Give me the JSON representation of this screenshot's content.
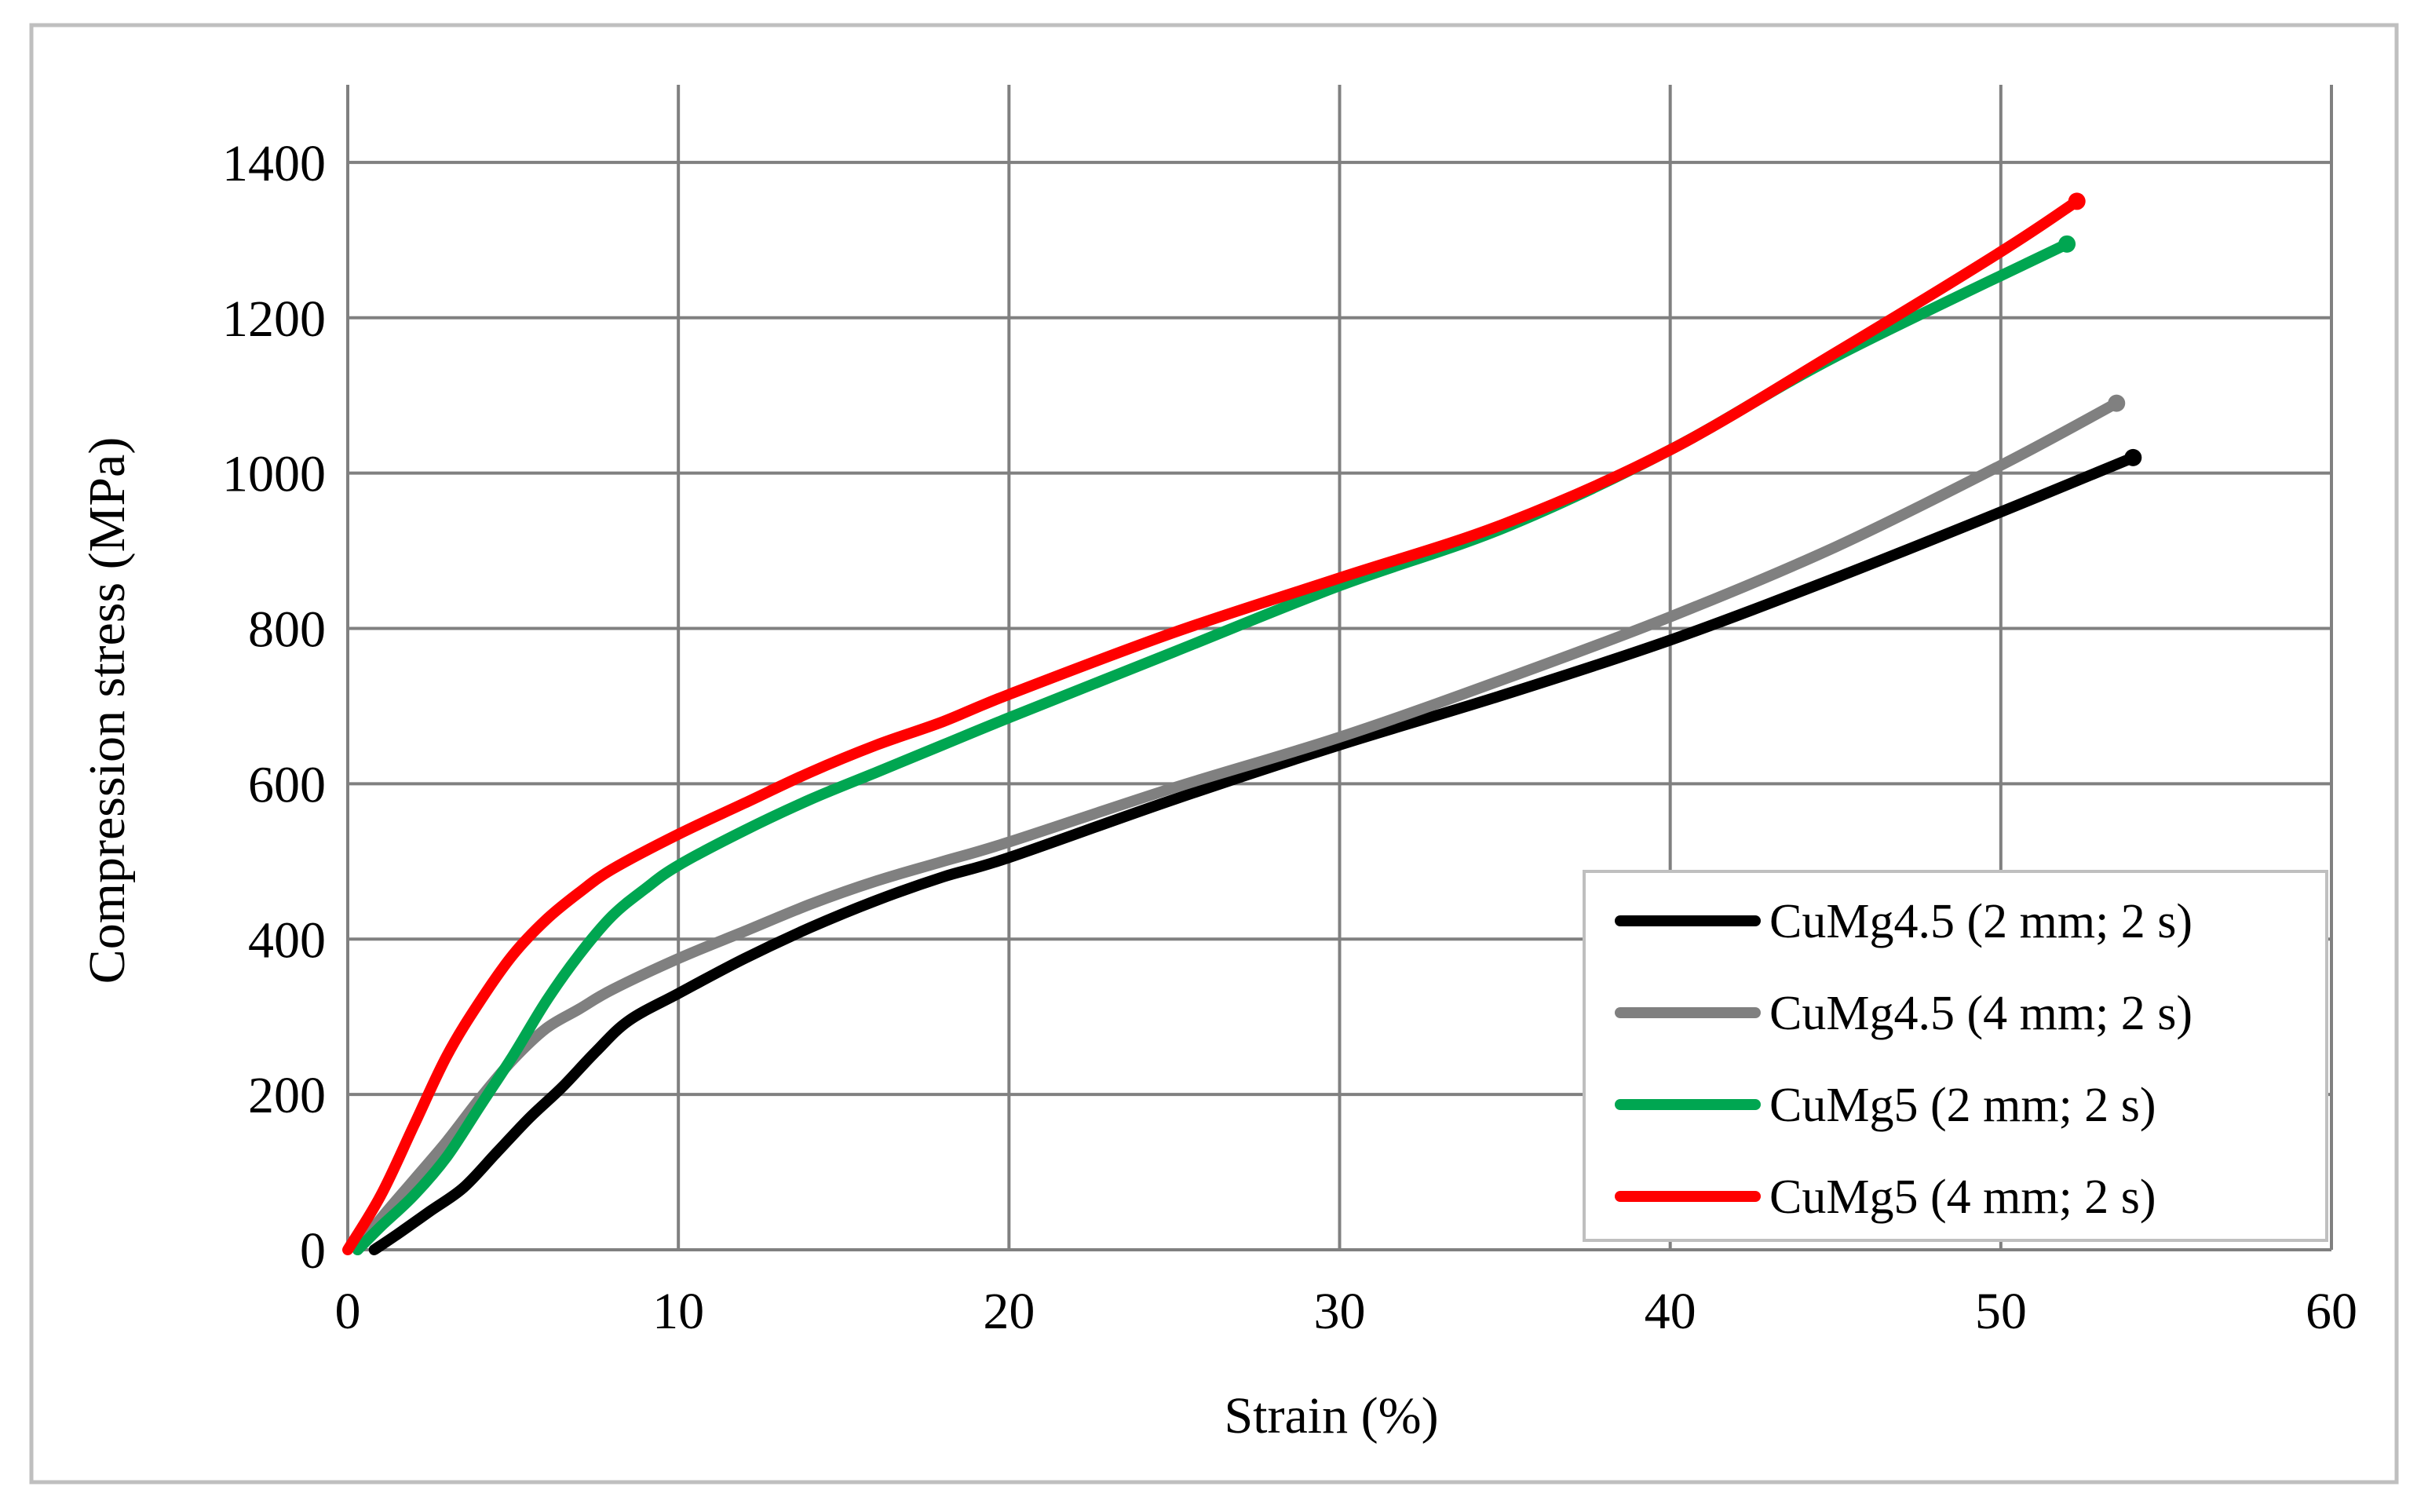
{
  "chart_data": {
    "type": "line",
    "title": "",
    "xlabel": "Strain (%)",
    "ylabel": "Compression stress (MPa)",
    "xlim": [
      0,
      60
    ],
    "ylim": [
      0,
      1500
    ],
    "xticks": [
      0,
      10,
      20,
      30,
      40,
      50,
      60
    ],
    "yticks": [
      0,
      200,
      400,
      600,
      800,
      1000,
      1200,
      1400
    ],
    "xtick_labels": [
      "0",
      "10",
      "20",
      "30",
      "40",
      "50",
      "60"
    ],
    "ytick_labels": [
      "0",
      "200",
      "400",
      "600",
      "800",
      "1000",
      "1200",
      "1400"
    ],
    "grid": true,
    "legend_position": "bottom-right",
    "series": [
      {
        "name": "CuMg4.5 (2 mm; 2 s)",
        "color": "#000000",
        "x": [
          0.8,
          1.5,
          2.5,
          3.5,
          4.5,
          5.5,
          6.5,
          7.5,
          8.5,
          10,
          12,
          14,
          16,
          18,
          20,
          25,
          30,
          35,
          40,
          45,
          50,
          54
        ],
        "y": [
          0,
          20,
          50,
          80,
          125,
          170,
          210,
          255,
          295,
          330,
          375,
          415,
          450,
          480,
          505,
          580,
          650,
          715,
          785,
          865,
          950,
          1020
        ]
      },
      {
        "name": "CuMg4.5 (4 mm; 2 s)",
        "color": "#808080",
        "x": [
          0.3,
          1,
          2,
          3,
          4,
          5,
          6,
          7,
          8,
          10,
          12,
          14,
          16,
          18,
          20,
          25,
          30,
          35,
          40,
          45,
          50,
          53.5
        ],
        "y": [
          0,
          40,
          90,
          140,
          195,
          245,
          285,
          310,
          335,
          375,
          410,
          445,
          475,
          500,
          525,
          595,
          660,
          735,
          815,
          905,
          1010,
          1090
        ]
      },
      {
        "name": "CuMg5 (2 mm; 2 s)",
        "color": "#00A651",
        "x": [
          0.3,
          1,
          2,
          3,
          4,
          5,
          6,
          7,
          8,
          9,
          10,
          12,
          14,
          16,
          18,
          20,
          25,
          30,
          35,
          40,
          45,
          52
        ],
        "y": [
          0,
          30,
          70,
          120,
          185,
          250,
          320,
          380,
          430,
          465,
          495,
          540,
          580,
          615,
          650,
          685,
          770,
          855,
          930,
          1030,
          1150,
          1295
        ]
      },
      {
        "name": "CuMg5 (4 mm; 2 s)",
        "color": "#FF0000",
        "x": [
          0,
          1,
          2,
          3,
          4,
          5,
          6,
          7,
          8,
          10,
          12,
          14,
          16,
          18,
          20,
          25,
          30,
          35,
          40,
          45,
          50,
          52.3
        ],
        "y": [
          0,
          70,
          160,
          250,
          320,
          380,
          425,
          460,
          490,
          535,
          575,
          615,
          650,
          680,
          715,
          795,
          865,
          935,
          1030,
          1155,
          1285,
          1350
        ]
      }
    ]
  }
}
